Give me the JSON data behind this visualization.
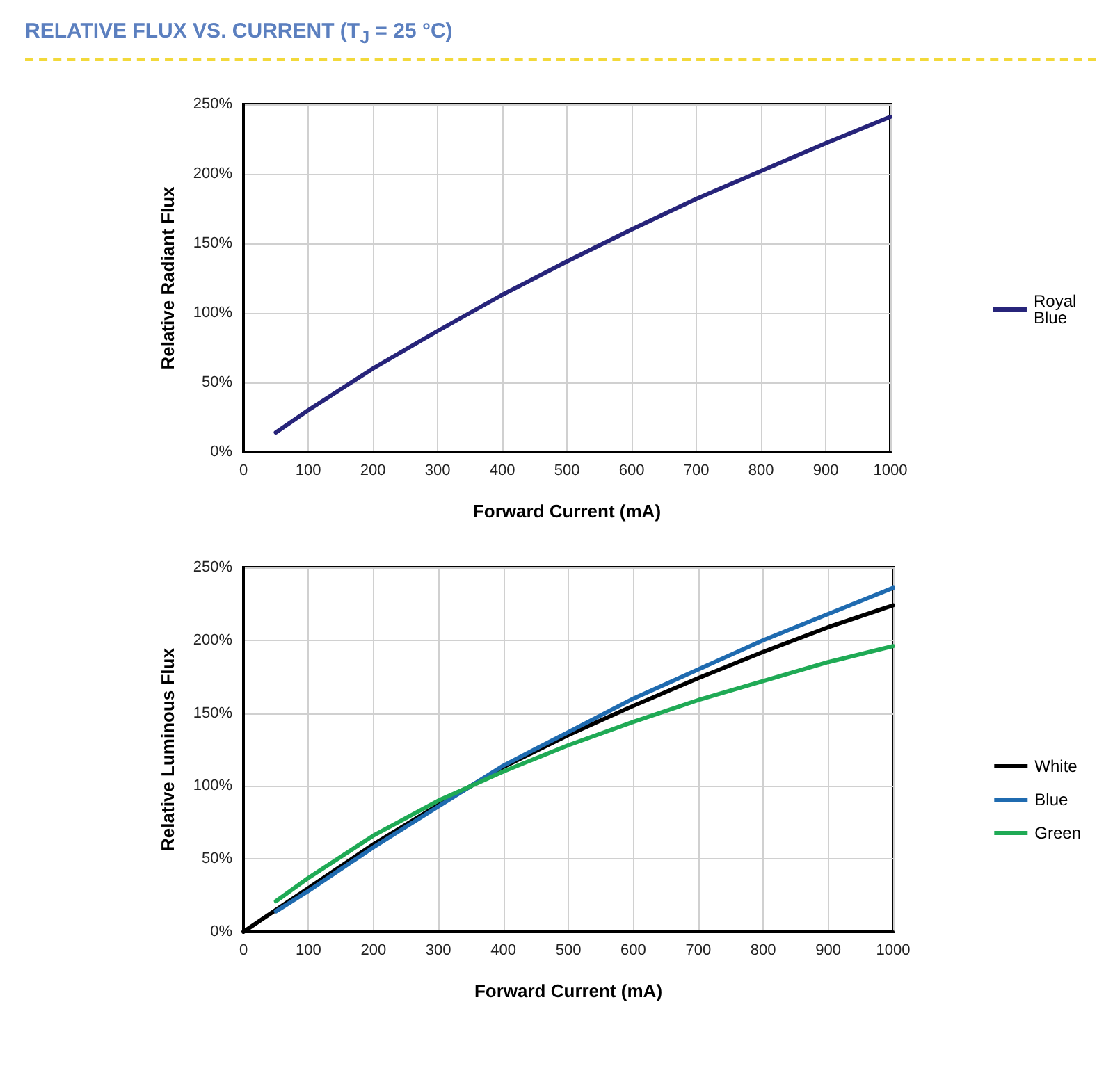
{
  "chart_data": [
    {
      "type": "line",
      "title": "RELATIVE FLUX VS. CURRENT (T$_{J}$ = 25 °C)",
      "xlabel": "Forward Current (mA)",
      "ylabel": "Relative Radiant Flux",
      "xlim": [
        0,
        1000
      ],
      "xticks": [
        0,
        100,
        200,
        300,
        400,
        500,
        600,
        700,
        800,
        900,
        1000
      ],
      "ylim": [
        0,
        250
      ],
      "yticks": [
        {
          "value": 0,
          "label": "0%"
        },
        {
          "value": 50,
          "label": "50%"
        },
        {
          "value": 100,
          "label": "100%"
        },
        {
          "value": 150,
          "label": "150%"
        },
        {
          "value": 200,
          "label": "200%"
        },
        {
          "value": 250,
          "label": "250%"
        }
      ],
      "grid": true,
      "legend": "right",
      "marker": "none",
      "line_style": "solid",
      "x": [
        50,
        100,
        200,
        300,
        400,
        500,
        600,
        700,
        800,
        900,
        1000
      ],
      "series": [
        {
          "name": "Royal Blue",
          "color": "#27247a",
          "values": [
            14,
            30,
            60,
            87,
            113,
            137,
            160,
            182,
            202,
            222,
            241
          ]
        }
      ]
    },
    {
      "type": "line",
      "xlabel": "Forward Current (mA)",
      "ylabel": "Relative Luminous Flux",
      "xlim": [
        0,
        1000
      ],
      "xticks": [
        0,
        100,
        200,
        300,
        400,
        500,
        600,
        700,
        800,
        900,
        1000
      ],
      "ylim": [
        0,
        250
      ],
      "yticks": [
        {
          "value": 0,
          "label": "0%"
        },
        {
          "value": 50,
          "label": "50%"
        },
        {
          "value": 100,
          "label": "100%"
        },
        {
          "value": 150,
          "label": "150%"
        },
        {
          "value": 200,
          "label": "200%"
        },
        {
          "value": 250,
          "label": "250%"
        }
      ],
      "grid": true,
      "legend": "right",
      "marker": "none",
      "line_style": "solid",
      "series": [
        {
          "name": "White",
          "color": "#000000",
          "x": [
            0,
            50,
            100,
            200,
            300,
            400,
            500,
            600,
            700,
            800,
            900,
            1000
          ],
          "values": [
            0,
            15,
            30,
            60,
            87,
            113,
            135,
            155,
            174,
            192,
            209,
            224
          ]
        },
        {
          "name": "Blue",
          "color": "#1f6bb0",
          "x": [
            50,
            100,
            200,
            300,
            350,
            400,
            500,
            600,
            700,
            800,
            900,
            1000
          ],
          "values": [
            14,
            28,
            58,
            86,
            100,
            114,
            137,
            160,
            180,
            200,
            218,
            236
          ]
        },
        {
          "name": "Green",
          "color": "#1faa55",
          "x": [
            50,
            100,
            200,
            300,
            350,
            400,
            500,
            600,
            700,
            800,
            900,
            1000
          ],
          "values": [
            21,
            37,
            66,
            90,
            100,
            110,
            128,
            144,
            159,
            172,
            185,
            196
          ]
        }
      ]
    }
  ]
}
